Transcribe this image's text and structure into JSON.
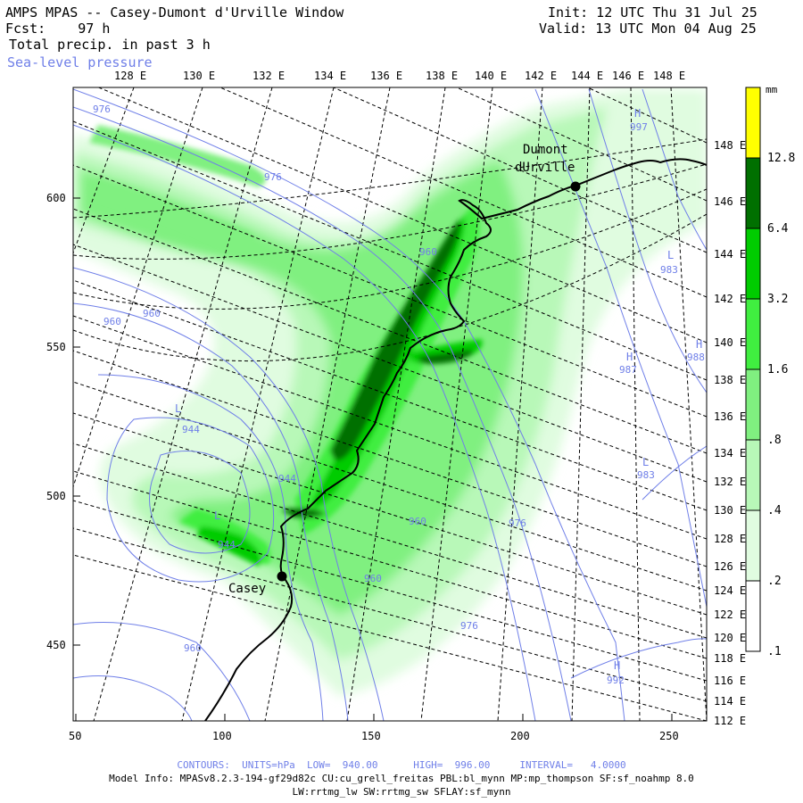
{
  "header": {
    "title": "AMPS MPAS -- Casey-Dumont d'Urville Window",
    "forecast": "Fcst:    97 h",
    "field": "Total precip. in past 3 h",
    "overlay": "Sea-level pressure",
    "init": "Init: 12 UTC Thu 31 Jul 25",
    "valid": "Valid: 13 UTC Mon 04 Aug 25"
  },
  "map": {
    "top_lon_ticks": [
      "128 E",
      "130 E",
      "132 E",
      "134 E",
      "136 E",
      "138 E",
      "140 E",
      "142 E",
      "144 E",
      "146 E",
      "148 E"
    ],
    "right_lon_ticks": [
      "148 E",
      "146 E",
      "144 E",
      "142 E",
      "140 E",
      "138 E",
      "136 E",
      "134 E",
      "132 E",
      "130 E",
      "128 E",
      "126 E",
      "124 E",
      "122 E",
      "120 E",
      "118 E",
      "116 E",
      "114 E",
      "112 E"
    ],
    "left_grid_ticks": [
      "600",
      "550",
      "500",
      "450"
    ],
    "bottom_grid_ticks": [
      "50",
      "100",
      "150",
      "200",
      "250"
    ],
    "stations": [
      {
        "name_line1": "Dumont",
        "name_line2": "dUrville"
      },
      {
        "name_line1": "Casey",
        "name_line2": ""
      }
    ],
    "pressure_labels": [
      "976",
      "976",
      "960",
      "960",
      "944",
      "944",
      "944",
      "960",
      "960",
      "976",
      "960",
      "976",
      "960",
      "997",
      "983",
      "987",
      "988",
      "983",
      "992"
    ],
    "pressure_marks": [
      "H",
      "L",
      "L",
      "H",
      "H",
      "L",
      "L",
      "H"
    ]
  },
  "colorbar": {
    "unit": "mm",
    "levels": [
      "12.8",
      "6.4",
      "3.2",
      "1.6",
      ".8",
      ".4",
      ".2",
      ".1"
    ],
    "colors": [
      "#ffff00",
      "#007000",
      "#00cc00",
      "#40ee40",
      "#80f080",
      "#b8f8b8",
      "#e0fce0",
      "#ffffff"
    ]
  },
  "footer": {
    "contours": "CONTOURS:  UNITS=hPa  LOW=  940.00      HIGH=  996.00     INTERVAL=   4.0000",
    "model_info": "Model Info: MPASv8.2.3-194-gf29d82c CU:cu_grell_freitas PBL:bl_mynn MP:mp_thompson SF:sf_noahmp 8.0",
    "model_info2": "LW:rrtmg_lw SW:rrtmg_sw SFLAY:sf_mynn"
  },
  "colors": {
    "contour": "#6f7fe8",
    "coast": "#000000",
    "graticule": "#000000"
  }
}
